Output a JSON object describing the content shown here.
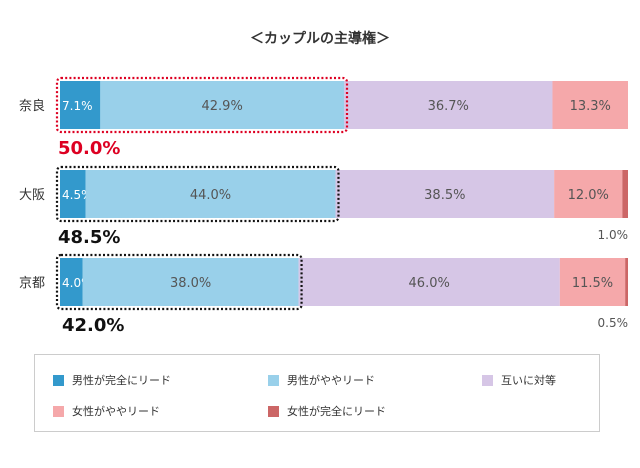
{
  "chart_data": {
    "type": "bar",
    "orientation": "horizontal",
    "stacked": true,
    "title": "＜カップルの主導権＞",
    "categories": [
      "奈良",
      "大阪",
      "京都"
    ],
    "series": [
      {
        "name": "男性が完全にリード",
        "color": "#3399cc",
        "values": [
          7.1,
          4.5,
          4.0
        ]
      },
      {
        "name": "男性がややリード",
        "color": "#99d0ea",
        "values": [
          42.9,
          44.0,
          38.0
        ]
      },
      {
        "name": "互いに対等",
        "color": "#d6c6e6",
        "values": [
          36.7,
          38.5,
          46.0
        ]
      },
      {
        "name": "女性がややリード",
        "color": "#f5a8aa",
        "values": [
          13.3,
          12.0,
          11.5
        ]
      },
      {
        "name": "女性が完全にリード",
        "color": "#cc6666",
        "values": [
          0.0,
          1.0,
          0.5
        ]
      }
    ],
    "value_labels": [
      [
        "7.1%",
        "42.9%",
        "36.7%",
        "13.3%",
        ""
      ],
      [
        "4.5%",
        "44.0%",
        "38.5%",
        "12.0%",
        "1.0%"
      ],
      [
        "4.0%",
        "38.0%",
        "46.0%",
        "11.5%",
        "0.5%"
      ]
    ],
    "male_lead_totals": [
      "50.0%",
      "48.5%",
      "42.0%"
    ],
    "male_lead_total_colors": [
      "#dd0022",
      "#111111",
      "#111111"
    ],
    "male_lead_outline_colors": [
      "#dd0022",
      "#111111",
      "#111111"
    ],
    "xlim": [
      0,
      100
    ],
    "legend_position": "bottom",
    "grid": false
  }
}
